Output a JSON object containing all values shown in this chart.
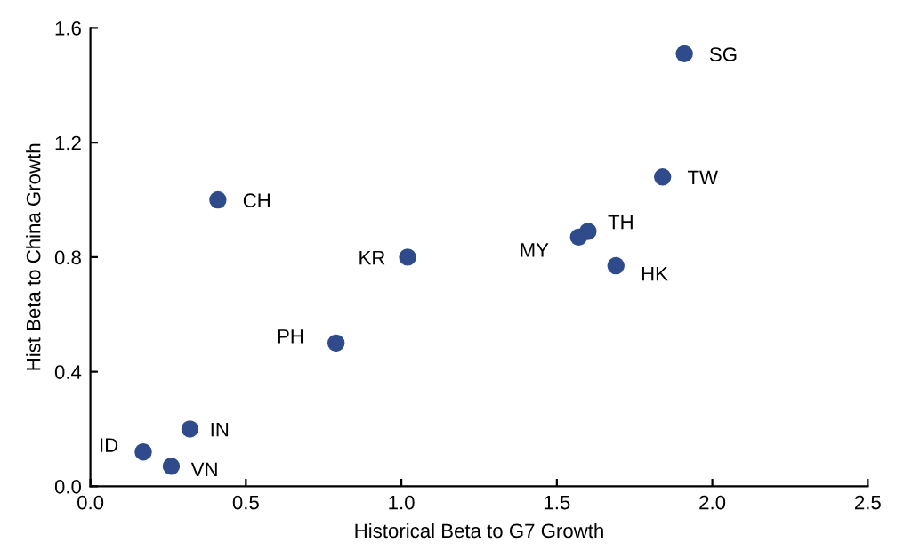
{
  "chart_data": {
    "type": "scatter",
    "xlabel": "Historical Beta to G7 Growth",
    "ylabel": "Hist Beta to China Growth",
    "x": [
      1.91,
      1.84,
      1.6,
      1.57,
      1.69,
      1.02,
      0.41,
      0.79,
      0.32,
      0.17,
      0.26
    ],
    "series": [
      {
        "color": "#2f4b8c",
        "values": [
          1.51,
          1.08,
          0.89,
          0.87,
          0.77,
          0.8,
          1.0,
          0.5,
          0.2,
          0.12,
          0.07
        ]
      }
    ],
    "marker": "circle",
    "grid": false,
    "legend": false,
    "xlim": [
      0,
      2.5
    ],
    "xticks": [
      {
        "value": 0,
        "label": "0.0"
      },
      0.5,
      {
        "value": 1,
        "label": "1.0"
      },
      1.5,
      {
        "value": 2,
        "label": "2.0"
      },
      2.5
    ],
    "ylim": [
      0,
      1.6
    ],
    "yticks": [
      {
        "value": 0,
        "label": "0.0"
      },
      0.4,
      0.8,
      1.2,
      1.6
    ],
    "annotations": [
      {
        "text": "SG",
        "x": 1.91,
        "y": 1.51
      },
      {
        "text": "TW",
        "x": 1.84,
        "y": 1.08
      },
      {
        "text": "TH",
        "x": 1.6,
        "y": 0.89
      },
      {
        "text": "MY",
        "x": 1.57,
        "y": 0.87
      },
      {
        "text": "HK",
        "x": 1.69,
        "y": 0.77
      },
      {
        "text": "KR",
        "x": 1.02,
        "y": 0.8
      },
      {
        "text": "CH",
        "x": 0.41,
        "y": 1.0
      },
      {
        "text": "PH",
        "x": 0.79,
        "y": 0.5
      },
      {
        "text": "IN",
        "x": 0.32,
        "y": 0.2
      },
      {
        "text": "ID",
        "x": 0.17,
        "y": 0.12
      },
      {
        "text": "VN",
        "x": 0.26,
        "y": 0.07
      }
    ]
  }
}
